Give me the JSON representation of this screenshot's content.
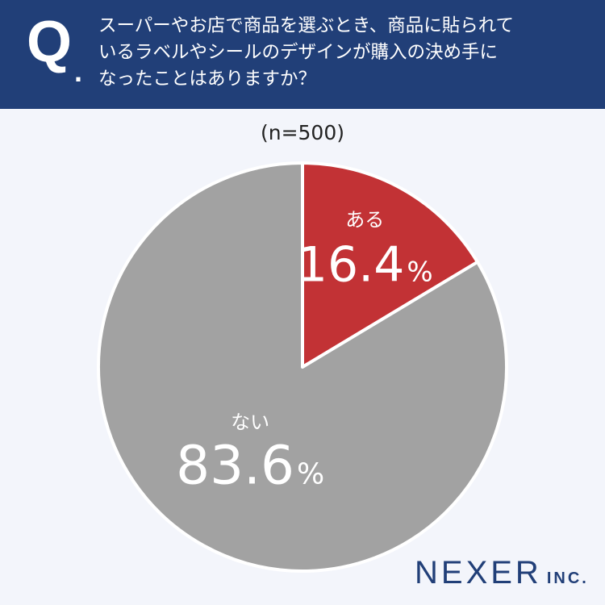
{
  "header": {
    "q_letter": "Q",
    "q_dot": ".",
    "lines": [
      "スーパーやお店で商品を選ぶとき、商品に貼られて",
      "いるラベルやシールのデザインが購入の決め手に",
      "なったことはありますか？"
    ]
  },
  "sample_size": "(n=500)",
  "chart_data": {
    "type": "pie",
    "title": "スーパーやお店で商品を選ぶとき、商品に貼られているラベルやシールのデザインが購入の決め手になったことはありますか？",
    "sample": "(n=500)",
    "categories": [
      "ある",
      "ない"
    ],
    "values": [
      16.4,
      83.6
    ],
    "unit": "%",
    "colors": [
      "#c23235",
      "#a2a2a2"
    ]
  },
  "brand": {
    "name": "NEXER",
    "suffix": "INC."
  }
}
